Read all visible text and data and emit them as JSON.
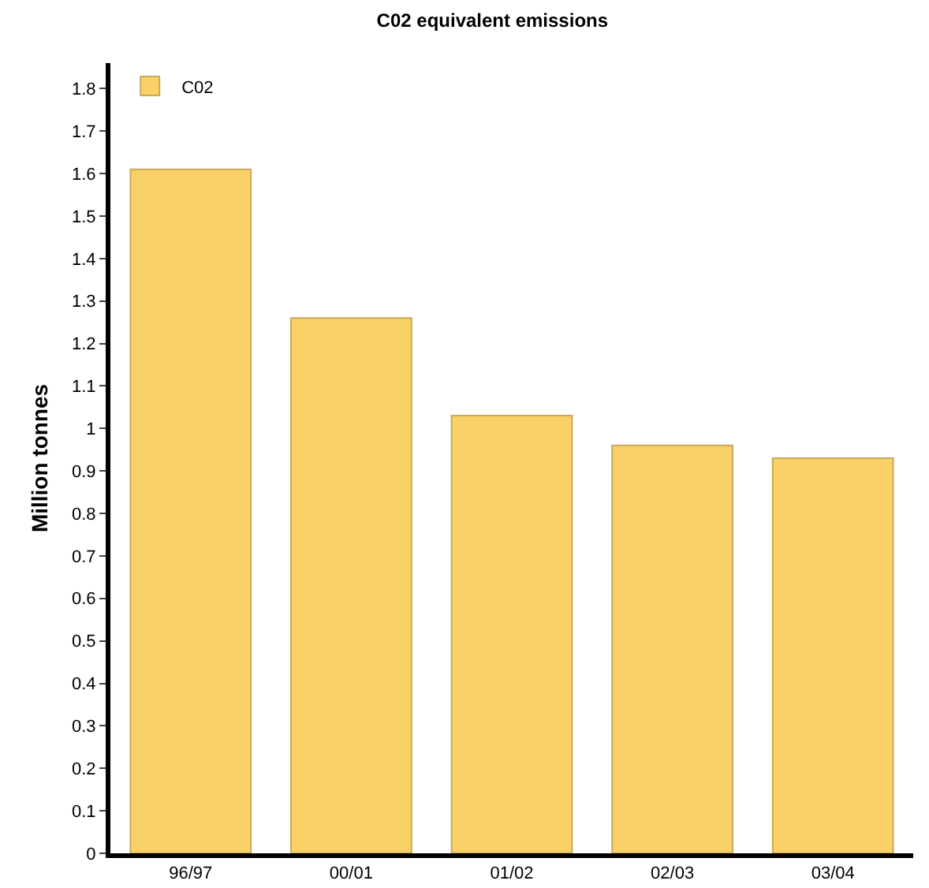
{
  "chart_data": {
    "type": "bar",
    "title": "C02 equivalent emissions",
    "ylabel": "Million tonnes",
    "categories": [
      "96/97",
      "00/01",
      "01/02",
      "02/03",
      "03/04"
    ],
    "series": [
      {
        "name": "C02",
        "color": "#fad166",
        "values": [
          1.61,
          1.26,
          1.03,
          0.96,
          0.93
        ]
      }
    ],
    "ylim": [
      0,
      1.86
    ],
    "yticks": [
      0,
      0.1,
      0.2,
      0.3,
      0.4,
      0.5,
      0.6,
      0.7,
      0.8,
      0.9,
      1,
      1.1,
      1.2,
      1.3,
      1.4,
      1.5,
      1.6,
      1.7,
      1.8
    ],
    "grid": false,
    "legend": "top left"
  }
}
